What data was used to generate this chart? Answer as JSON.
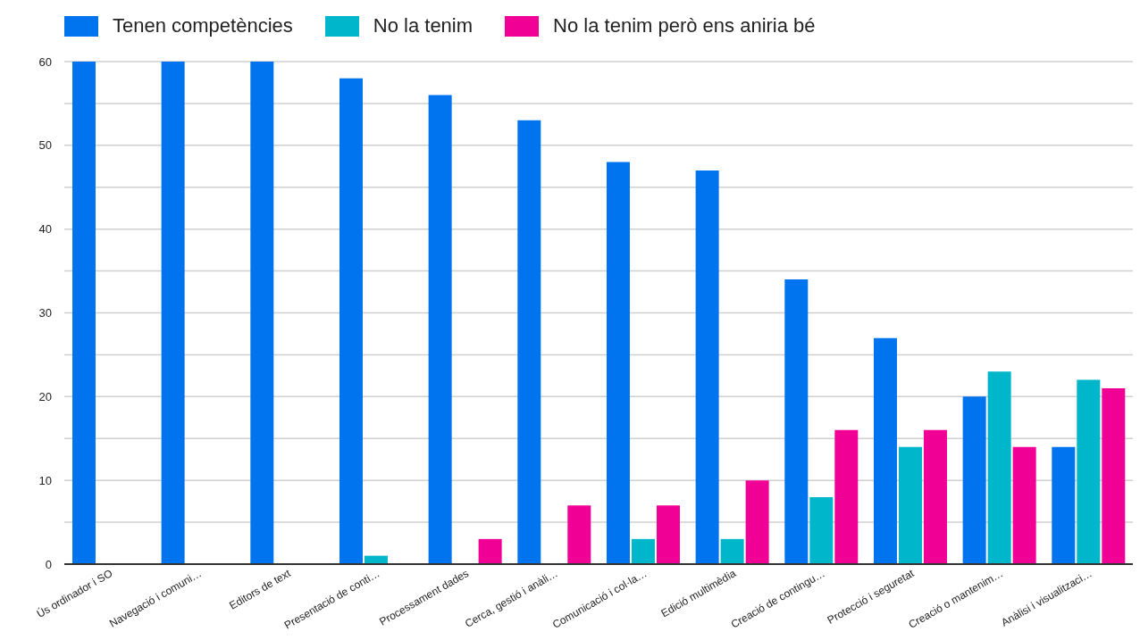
{
  "chart_data": {
    "type": "bar",
    "categories": [
      "Ús ordinador i SO",
      "Navegació i comuni…",
      "Editors de text",
      "Presentació de conti…",
      "Processament dades",
      "Cerca, gestió i anàli…",
      "Comunicació i col·la…",
      "Edició multimèdia",
      "Creació de contingu…",
      "Protecció i seguretat",
      "Creació o mantenim…",
      "Anàlisi i visualitzaci…"
    ],
    "series": [
      {
        "name": "Tenen competències",
        "color": "#0073ef",
        "values": [
          60,
          60,
          60,
          58,
          56,
          53,
          48,
          47,
          34,
          27,
          20,
          14
        ]
      },
      {
        "name": "No la tenim",
        "color": "#00b6cb",
        "values": [
          0,
          0,
          0,
          1,
          0,
          0,
          3,
          3,
          8,
          14,
          23,
          22
        ]
      },
      {
        "name": "No la tenim però ens aniria bé",
        "color": "#f10096",
        "values": [
          0,
          0,
          0,
          0,
          3,
          7,
          7,
          10,
          16,
          16,
          14,
          21
        ]
      }
    ],
    "ylim": [
      0,
      60
    ],
    "yticks": [
      0,
      {
        "value": 5,
        "label": null
      },
      10,
      {
        "value": 15,
        "label": null
      },
      20,
      {
        "value": 25,
        "label": null
      },
      30,
      {
        "value": 35,
        "label": null
      },
      40,
      {
        "value": 45,
        "label": null
      },
      50,
      {
        "value": 55,
        "label": null
      },
      60
    ],
    "grid": "y",
    "legend": "top left"
  }
}
